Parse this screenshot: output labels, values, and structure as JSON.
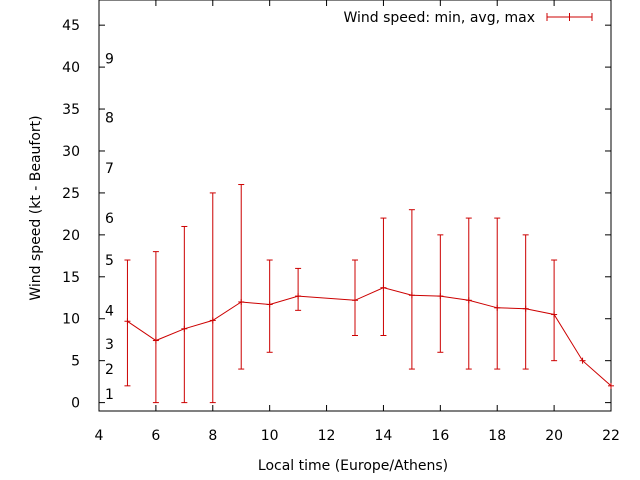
{
  "chart_data": {
    "type": "line",
    "title": "",
    "xlabel": "Local time (Europe/Athens)",
    "ylabel": "Wind speed (kt - Beaufort)",
    "xlim": [
      4,
      22
    ],
    "ylim": [
      -1,
      48
    ],
    "x_ticks": [
      4,
      6,
      8,
      10,
      12,
      14,
      16,
      18,
      20,
      22
    ],
    "y_ticks": [
      0,
      5,
      10,
      15,
      20,
      25,
      30,
      35,
      40,
      45
    ],
    "beaufort_marks": [
      {
        "label": "1",
        "y": 1
      },
      {
        "label": "2",
        "y": 4
      },
      {
        "label": "3",
        "y": 7
      },
      {
        "label": "4",
        "y": 11
      },
      {
        "label": "5",
        "y": 17
      },
      {
        "label": "6",
        "y": 22
      },
      {
        "label": "7",
        "y": 28
      },
      {
        "label": "8",
        "y": 34
      },
      {
        "label": "9",
        "y": 41
      }
    ],
    "legend": {
      "label": "Wind speed: min, avg, max",
      "position": "top-right"
    },
    "grid": false,
    "series": [
      {
        "name": "Wind speed: min, avg, max",
        "color": "#cc0000",
        "points": [
          {
            "x": 5,
            "avg": 9.7,
            "min": 2,
            "max": 17
          },
          {
            "x": 6,
            "avg": 7.4,
            "min": 0,
            "max": 18
          },
          {
            "x": 7,
            "avg": 8.8,
            "min": 0,
            "max": 21
          },
          {
            "x": 8,
            "avg": 9.8,
            "min": 0,
            "max": 25
          },
          {
            "x": 9,
            "avg": 12.0,
            "min": 4,
            "max": 26
          },
          {
            "x": 10,
            "avg": 11.7,
            "min": 6,
            "max": 17
          },
          {
            "x": 11,
            "avg": 12.7,
            "min": 11,
            "max": 16
          },
          {
            "x": 13,
            "avg": 12.2,
            "min": 8,
            "max": 17
          },
          {
            "x": 14,
            "avg": 13.7,
            "min": 8,
            "max": 22
          },
          {
            "x": 15,
            "avg": 12.8,
            "min": 4,
            "max": 23
          },
          {
            "x": 16,
            "avg": 12.7,
            "min": 6,
            "max": 20
          },
          {
            "x": 17,
            "avg": 12.2,
            "min": 4,
            "max": 22
          },
          {
            "x": 18,
            "avg": 11.3,
            "min": 4,
            "max": 22
          },
          {
            "x": 19,
            "avg": 11.2,
            "min": 4,
            "max": 20
          },
          {
            "x": 20,
            "avg": 10.5,
            "min": 5,
            "max": 17
          },
          {
            "x": 21,
            "avg": 5.0,
            "min": 5,
            "max": 5
          },
          {
            "x": 22,
            "avg": 2.0,
            "min": 2,
            "max": 2
          }
        ]
      }
    ]
  }
}
